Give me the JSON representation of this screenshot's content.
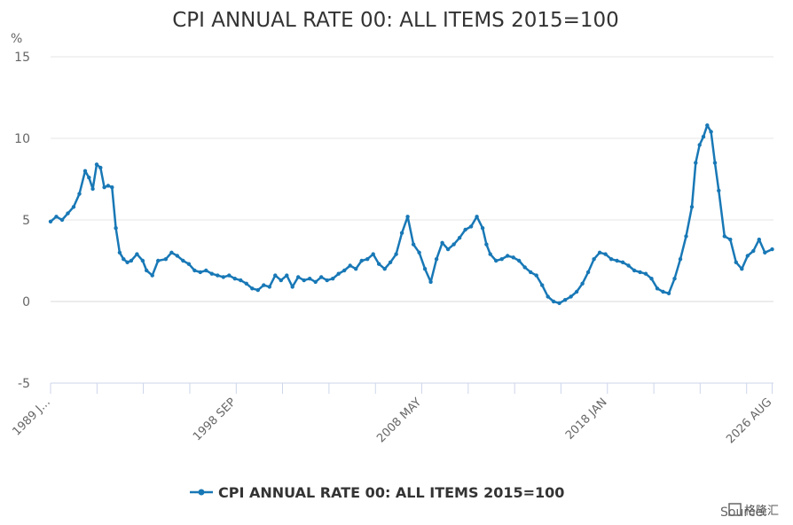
{
  "source_label": "Source:",
  "watermark": "格隆汇",
  "chart_data": {
    "type": "line",
    "title": "CPI ANNUAL RATE 00: ALL ITEMS 2015=100",
    "ylabel": "%",
    "xlabel": "",
    "ylim": [
      -5,
      15
    ],
    "yticks": [
      -5,
      0,
      5,
      10,
      15
    ],
    "xlim": [
      1989.0,
      2026.65
    ],
    "xtick_labels": [
      {
        "x": 1989.0,
        "label": "1989 J..."
      },
      {
        "x": 1998.67,
        "label": "1998 SEP"
      },
      {
        "x": 2008.33,
        "label": "2008 MAY"
      },
      {
        "x": 2018.0,
        "label": "2018 JAN"
      },
      {
        "x": 2026.58,
        "label": "2026 AUG"
      }
    ],
    "xtick_marks": [
      1989.0,
      1991.42,
      1993.83,
      1996.25,
      1998.67,
      2001.08,
      2003.5,
      2005.92,
      2008.33,
      2010.75,
      2013.17,
      2015.58,
      2018.0,
      2020.42,
      2022.83,
      2025.25,
      2026.58
    ],
    "grid": true,
    "legend_position": "bottom-center",
    "color": "#1878b6",
    "series": [
      {
        "name": "CPI ANNUAL RATE 00: ALL ITEMS 2015=100",
        "x": [
          1989.0,
          1989.3,
          1989.6,
          1989.9,
          1990.2,
          1990.5,
          1990.8,
          1991.0,
          1991.2,
          1991.4,
          1991.6,
          1991.8,
          1992.0,
          1992.2,
          1992.4,
          1992.6,
          1992.8,
          1993.0,
          1993.2,
          1993.5,
          1993.8,
          1994.0,
          1994.3,
          1994.6,
          1995.0,
          1995.3,
          1995.6,
          1995.9,
          1996.2,
          1996.5,
          1996.8,
          1997.1,
          1997.4,
          1997.7,
          1998.0,
          1998.3,
          1998.6,
          1998.9,
          1999.2,
          1999.5,
          1999.8,
          2000.1,
          2000.4,
          2000.7,
          2001.0,
          2001.3,
          2001.6,
          2001.9,
          2002.2,
          2002.5,
          2002.8,
          2003.1,
          2003.4,
          2003.7,
          2004.0,
          2004.3,
          2004.6,
          2004.9,
          2005.2,
          2005.5,
          2005.8,
          2006.1,
          2006.4,
          2006.7,
          2007.0,
          2007.3,
          2007.6,
          2007.9,
          2008.2,
          2008.5,
          2008.8,
          2009.1,
          2009.4,
          2009.7,
          2010.0,
          2010.3,
          2010.6,
          2010.9,
          2011.2,
          2011.5,
          2011.7,
          2011.9,
          2012.2,
          2012.5,
          2012.8,
          2013.1,
          2013.4,
          2013.7,
          2014.0,
          2014.3,
          2014.6,
          2014.9,
          2015.2,
          2015.5,
          2015.8,
          2016.1,
          2016.4,
          2016.7,
          2017.0,
          2017.3,
          2017.6,
          2017.9,
          2018.2,
          2018.5,
          2018.8,
          2019.1,
          2019.4,
          2019.7,
          2020.0,
          2020.3,
          2020.6,
          2020.9,
          2021.2,
          2021.5,
          2021.8,
          2022.1,
          2022.4,
          2022.6,
          2022.8,
          2023.0,
          2023.2,
          2023.4,
          2023.6,
          2023.8,
          2024.1,
          2024.4,
          2024.7,
          2025.0,
          2025.3,
          2025.6,
          2025.9,
          2026.2,
          2026.58
        ],
        "y": [
          4.9,
          5.2,
          5.0,
          5.4,
          5.8,
          6.6,
          8.0,
          7.6,
          6.9,
          8.4,
          8.2,
          7.0,
          7.1,
          7.0,
          4.5,
          3.0,
          2.6,
          2.4,
          2.5,
          2.9,
          2.5,
          1.9,
          1.6,
          2.5,
          2.6,
          3.0,
          2.8,
          2.5,
          2.3,
          1.9,
          1.8,
          1.9,
          1.7,
          1.6,
          1.5,
          1.6,
          1.4,
          1.3,
          1.1,
          0.8,
          0.7,
          1.0,
          0.9,
          1.6,
          1.3,
          1.6,
          0.9,
          1.5,
          1.3,
          1.4,
          1.2,
          1.5,
          1.3,
          1.4,
          1.7,
          1.9,
          2.2,
          2.0,
          2.5,
          2.6,
          2.9,
          2.3,
          2.0,
          2.4,
          2.9,
          4.2,
          5.2,
          3.5,
          3.0,
          2.0,
          1.2,
          2.6,
          3.6,
          3.2,
          3.5,
          3.9,
          4.4,
          4.6,
          5.2,
          4.5,
          3.5,
          2.9,
          2.5,
          2.6,
          2.8,
          2.7,
          2.5,
          2.1,
          1.8,
          1.6,
          1.0,
          0.3,
          0.0,
          -0.1,
          0.1,
          0.3,
          0.6,
          1.1,
          1.8,
          2.6,
          3.0,
          2.9,
          2.6,
          2.5,
          2.4,
          2.2,
          1.9,
          1.8,
          1.7,
          1.4,
          0.8,
          0.6,
          0.5,
          1.4,
          2.6,
          4.0,
          5.8,
          8.5,
          9.6,
          10.1,
          10.8,
          10.4,
          8.5,
          6.8,
          4.0,
          3.8,
          2.4,
          2.0,
          2.8,
          3.1,
          3.8,
          3.0,
          3.2
        ]
      }
    ]
  }
}
